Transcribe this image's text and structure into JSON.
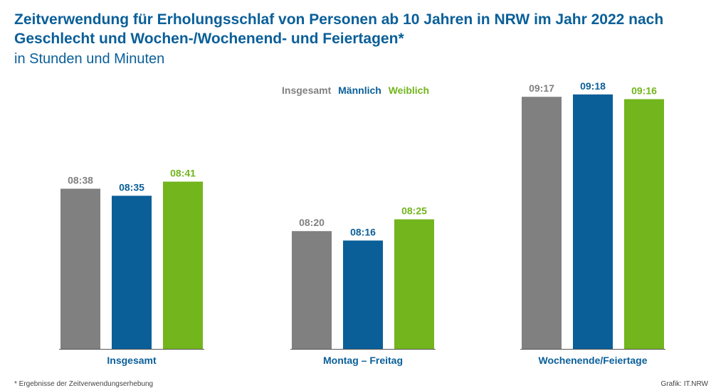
{
  "chart_data": {
    "type": "bar",
    "title": "Zeitverwendung für Erholungsschlaf von Personen ab 10 Jahren in NRW im Jahr 2022 nach Geschlecht und Wochen-/Wochenend- und Feiertagen*",
    "subtitle": "in Stunden und Minuten",
    "categories": [
      "Insgesamt",
      "Montag – Freitag",
      "Wochenende/Feiertage"
    ],
    "series": [
      {
        "name": "Insgesamt",
        "color": "#808080",
        "labels": [
          "08:38",
          "08:20",
          "09:17"
        ],
        "values": [
          8.6333,
          8.3333,
          9.2833
        ]
      },
      {
        "name": "Männlich",
        "color": "#0a5f99",
        "labels": [
          "08:35",
          "08:16",
          "09:18"
        ],
        "values": [
          8.5833,
          8.2667,
          9.3
        ]
      },
      {
        "name": "Weiblich",
        "color": "#72b51c",
        "labels": [
          "08:41",
          "08:25",
          "09:16"
        ],
        "values": [
          8.6833,
          8.4167,
          9.2667
        ]
      }
    ],
    "ylim": [
      7.5,
      9.4
    ],
    "grid": false,
    "legend_position": "top-center"
  },
  "footnote": "* Ergebnisse der Zeitverwendungserhebung",
  "credit": "Grafik: IT.NRW"
}
